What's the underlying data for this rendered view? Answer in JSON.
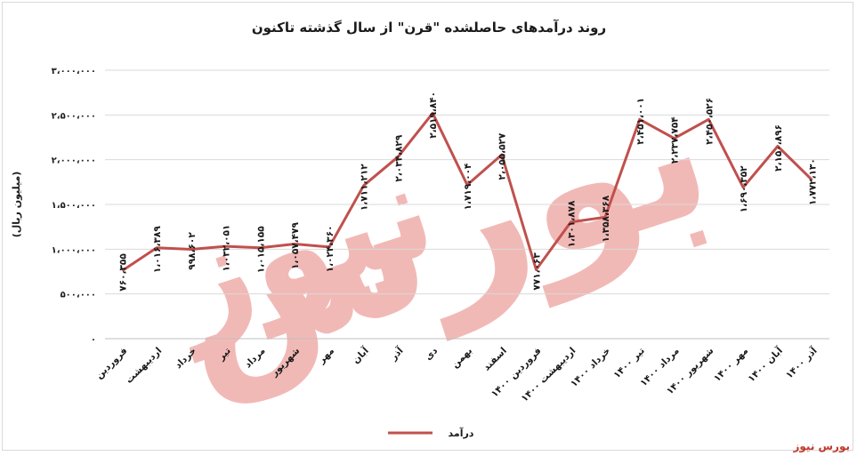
{
  "chart_data": {
    "type": "line",
    "title": "روند درآمدهای حاصلشده \"قرن\" از سال گذشته تاکنون",
    "ylabel": "(میلیون ریال)",
    "xlabel": "",
    "ylim": [
      0,
      3000000
    ],
    "yticks": [
      0,
      500000,
      1000000,
      1500000,
      2000000,
      2500000,
      3000000
    ],
    "ytick_labels": [
      "۰",
      "۵۰۰،۰۰۰",
      "۱،۰۰۰،۰۰۰",
      "۱،۵۰۰،۰۰۰",
      "۲،۰۰۰،۰۰۰",
      "۲،۵۰۰،۰۰۰",
      "۳،۰۰۰،۰۰۰"
    ],
    "categories": [
      "فروردین",
      "اردیبهشت",
      "خرداد",
      "تیر",
      "مرداد",
      "شهریور",
      "مهر",
      "آبان",
      "آذر",
      "دی",
      "بهمن",
      "اسفند",
      "فروردین ۱۴۰۰",
      "اردیبهشت ۱۴۰۰",
      "خرداد ۱۴۰۰",
      "تیر ۱۴۰۰",
      "مرداد ۱۴۰۰",
      "شهریور ۱۴۰۰",
      "مهر ۱۴۰۰",
      "آبان ۱۴۰۰",
      "آذر ۱۴۰۰"
    ],
    "series": [
      {
        "name": "درآمد",
        "color": "#c0504d",
        "values": [
          760355,
          1016389,
          998602,
          1032051,
          1015155,
          1057479,
          1024360,
          1711212,
          2034829,
          2519840,
          1719004,
          2055527,
          771063,
          1301878,
          1358368,
          2451001,
          2237754,
          2450526,
          1690352,
          2150896,
          1772130
        ],
        "labels": [
          "۷۶۰،۳۵۵",
          "۱،۰۱۶،۳۸۹",
          "۹۹۸،۶۰۲",
          "۱،۰۳۲،۰۵۱",
          "۱،۰۱۵،۱۵۵",
          "۱،۰۵۷،۴۷۹",
          "۱،۰۲۴،۳۶۰",
          "۱،۷۱۱،۲۱۲",
          "۲،۰۳۴،۸۲۹",
          "۲،۵۱۹،۸۴۰",
          "۱،۷۱۹،۰۰۴",
          "۲،۰۵۵،۵۲۷",
          "۷۷۱،۰۶۳",
          "۱،۳۰۱،۸۷۸",
          "۱،۳۵۸،۳۶۸",
          "۲،۴۵۱،۰۰۱",
          "۲،۲۳۷،۷۵۴",
          "۲،۴۵۰،۵۲۶",
          "۱،۶۹۰،۳۵۲",
          "۲،۱۵۰،۸۹۶",
          "۱،۷۷۲،۱۳۰"
        ]
      }
    ],
    "grid": "horizontal",
    "legend": "bottom"
  },
  "watermark": "بورس نیوز",
  "caption": "بورس نیوز"
}
